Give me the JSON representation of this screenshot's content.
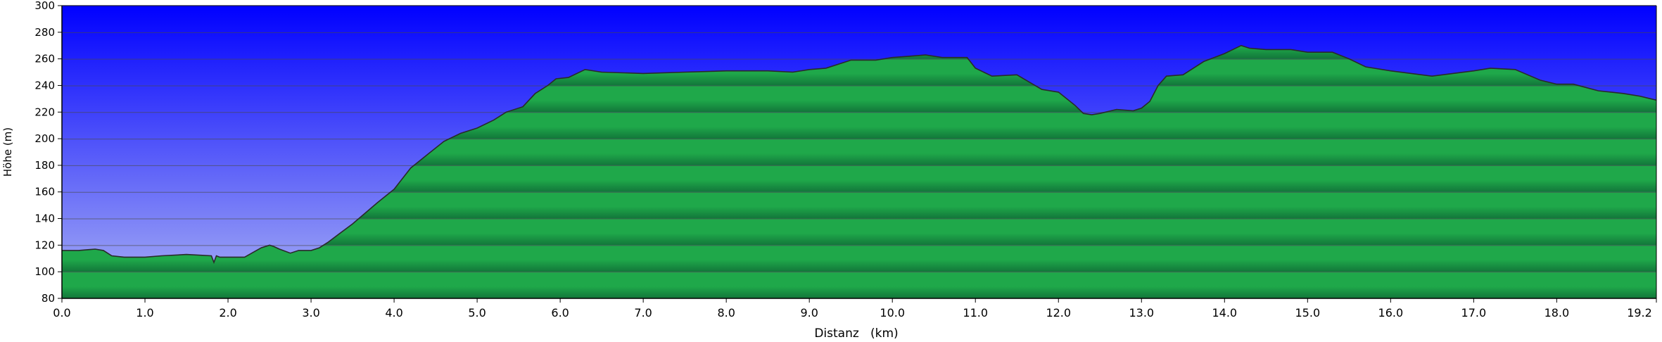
{
  "chart_data": {
    "type": "area",
    "title": "",
    "xlabel": "Distanz   (km)",
    "ylabel": "Höhe (m)",
    "xlim": [
      0,
      19.2
    ],
    "ylim": [
      80,
      300
    ],
    "x_ticks": [
      0,
      1,
      2,
      3,
      4,
      5,
      6,
      7,
      8,
      9,
      10,
      11,
      12,
      13,
      14,
      15,
      16,
      17,
      18,
      19.2
    ],
    "x_tick_labels": [
      "0.0",
      "1.0",
      "2.0",
      "3.0",
      "4.0",
      "5.0",
      "6.0",
      "7.0",
      "8.0",
      "9.0",
      "10.0",
      "11.0",
      "12.0",
      "13.0",
      "14.0",
      "15.0",
      "16.0",
      "17.0",
      "18.0",
      "19.2"
    ],
    "y_ticks": [
      80,
      100,
      120,
      140,
      160,
      180,
      200,
      220,
      240,
      260,
      280,
      300
    ],
    "y_tick_labels": [
      "80",
      "100",
      "120",
      "140",
      "160",
      "180",
      "200",
      "220",
      "240",
      "260",
      "280",
      "300"
    ],
    "grid": true,
    "legend": "none",
    "colors": {
      "sky_top": "#0000ff",
      "sky_bottom": "#aab2f4",
      "fill": "#1fa84a",
      "fill_dark": "#12763a",
      "line": "#2a2a2a",
      "grid": "#4a4a4a"
    },
    "series": [
      {
        "x": [
          0,
          0.2,
          0.4,
          0.5,
          0.6,
          0.75,
          1.0,
          1.2,
          1.5,
          1.8,
          1.83,
          1.86,
          1.9,
          2.0,
          2.2,
          2.4,
          2.5,
          2.55,
          2.62,
          2.75,
          2.85,
          3.0,
          3.1,
          3.2,
          3.35,
          3.5,
          3.65,
          3.8,
          4.0,
          4.2,
          4.4,
          4.6,
          4.8,
          5.0,
          5.2,
          5.35,
          5.55,
          5.7,
          5.85,
          5.95,
          6.1,
          6.3,
          6.5,
          7.0,
          7.5,
          8.0,
          8.5,
          8.8,
          9.0,
          9.2,
          9.5,
          9.8,
          10.0,
          10.2,
          10.4,
          10.6,
          10.9,
          11.0,
          11.2,
          11.5,
          11.8,
          12.0,
          12.2,
          12.3,
          12.4,
          12.5,
          12.7,
          12.9,
          13.0,
          13.1,
          13.2,
          13.3,
          13.5,
          13.75,
          14.0,
          14.2,
          14.3,
          14.5,
          14.8,
          15.0,
          15.2,
          15.3,
          15.5,
          15.7,
          16.0,
          16.5,
          17.0,
          17.2,
          17.5,
          17.8,
          18.0,
          18.2,
          18.5,
          18.8,
          19.0,
          19.2
        ],
        "y": [
          116,
          116,
          117,
          116,
          112,
          111,
          111,
          112,
          113,
          112,
          107,
          112,
          111,
          111,
          111,
          118,
          120,
          119,
          117,
          114,
          116,
          116,
          118,
          122,
          129,
          136,
          144,
          152,
          162,
          178,
          188,
          198,
          204,
          208,
          214,
          220,
          224,
          234,
          240,
          245,
          246,
          252,
          250,
          249,
          250,
          251,
          251,
          250,
          252,
          253,
          259,
          259,
          261,
          262,
          263,
          261,
          261,
          253,
          247,
          248,
          237,
          235,
          225,
          219,
          218,
          219,
          222,
          221,
          223,
          228,
          240,
          247,
          248,
          258,
          264,
          270,
          268,
          267,
          267,
          265,
          265,
          265,
          260,
          254,
          251,
          247,
          251,
          253,
          252,
          244,
          241,
          241,
          236,
          234,
          232,
          229
        ]
      }
    ]
  }
}
